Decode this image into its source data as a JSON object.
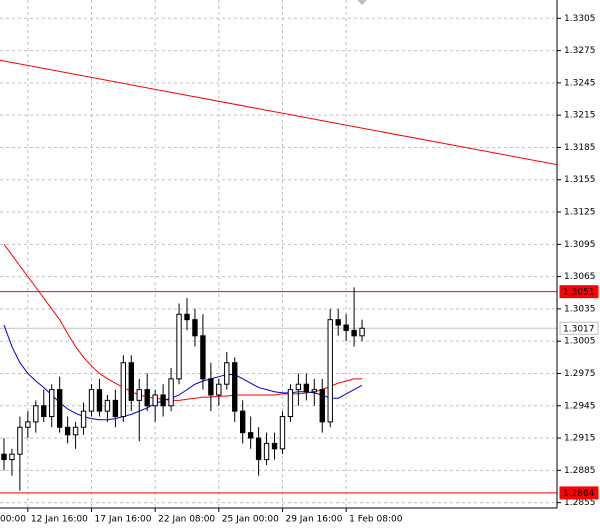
{
  "chart_data": {
    "type": "candlestick",
    "xlim": [
      0,
      70
    ],
    "ylim": [
      1.285,
      1.3322
    ],
    "yticks": [
      1.3305,
      1.3275,
      1.3245,
      1.3215,
      1.3185,
      1.3155,
      1.3125,
      1.3095,
      1.3065,
      1.3035,
      1.3005,
      1.2975,
      1.2945,
      1.2915,
      1.2885,
      1.2855
    ],
    "xticks": [
      {
        "value": -0.4,
        "label": "00:00"
      },
      {
        "value": 3.5,
        "label": "12 Jan 16:00"
      },
      {
        "value": 11.5,
        "label": "17 Jan 16:00"
      },
      {
        "value": 19.5,
        "label": "22 Jan 08:00"
      },
      {
        "value": 27.5,
        "label": "25 Jan 00:00"
      },
      {
        "value": 35.5,
        "label": "29 Jan 16:00"
      },
      {
        "value": 43.5,
        "label": "1 Feb 08:00"
      }
    ],
    "grid": true,
    "open": [
      1.29,
      1.2895,
      1.29,
      1.2925,
      1.293,
      1.2945,
      1.2935,
      1.296,
      1.2925,
      1.2918,
      1.2925,
      1.294,
      1.296,
      1.294,
      1.295,
      1.2935,
      1.2985,
      1.295,
      1.296,
      1.2945,
      1.2955,
      1.2945,
      1.297,
      1.303,
      1.3025,
      1.301,
      1.297,
      1.2955,
      1.2965,
      1.2985,
      1.294,
      1.292,
      1.2915,
      1.2895,
      1.291,
      1.2905,
      1.2935,
      1.296,
      1.2965,
      1.2958,
      1.296,
      1.293,
      1.3025,
      1.302,
      1.3015,
      1.301
    ],
    "high": [
      1.2915,
      1.2905,
      1.2935,
      1.294,
      1.295,
      1.296,
      1.2965,
      1.2972,
      1.2935,
      1.293,
      1.2948,
      1.2965,
      1.297,
      1.2955,
      1.296,
      1.2992,
      1.2992,
      1.297,
      1.2975,
      1.296,
      1.2965,
      1.298,
      1.304,
      1.3045,
      1.3035,
      1.303,
      1.2985,
      1.297,
      1.2995,
      1.299,
      1.295,
      1.2935,
      1.2925,
      1.292,
      1.292,
      1.294,
      1.2965,
      1.2975,
      1.2975,
      1.297,
      1.297,
      1.3035,
      1.3035,
      1.303,
      1.3055,
      1.3025
    ],
    "low": [
      1.2885,
      1.288,
      1.2866,
      1.2915,
      1.292,
      1.293,
      1.2925,
      1.292,
      1.291,
      1.2905,
      1.2918,
      1.2935,
      1.2935,
      1.293,
      1.2925,
      1.293,
      1.294,
      1.2912,
      1.294,
      1.293,
      1.2935,
      1.294,
      1.2965,
      1.3015,
      1.3,
      1.296,
      1.294,
      1.2945,
      1.296,
      1.293,
      1.291,
      1.2905,
      1.288,
      1.289,
      1.2895,
      1.29,
      1.293,
      1.2945,
      1.295,
      1.2945,
      1.292,
      1.2925,
      1.301,
      1.3005,
      1.3,
      1.3005
    ],
    "close": [
      1.2895,
      1.29,
      1.2925,
      1.293,
      1.2945,
      1.2935,
      1.296,
      1.2925,
      1.2918,
      1.2925,
      1.294,
      1.296,
      1.294,
      1.295,
      1.2935,
      1.2985,
      1.295,
      1.296,
      1.2945,
      1.2955,
      1.2945,
      1.297,
      1.303,
      1.3025,
      1.301,
      1.297,
      1.2955,
      1.2965,
      1.2985,
      1.294,
      1.292,
      1.2915,
      1.2895,
      1.291,
      1.2905,
      1.2935,
      1.296,
      1.2965,
      1.2958,
      1.296,
      1.293,
      1.3025,
      1.302,
      1.3015,
      1.301,
      1.3017
    ],
    "overlays": [
      {
        "color": "#ff0000",
        "values": [
          1.3095,
          1.3085,
          1.3075,
          1.3065,
          1.3055,
          1.3045,
          1.3035,
          1.3025,
          1.3012,
          1.3,
          1.299,
          1.2982,
          1.2975,
          1.297,
          1.2966,
          1.2962,
          1.2958,
          1.2955,
          1.2953,
          1.2952,
          1.2951,
          1.295,
          1.295,
          1.2951,
          1.2952,
          1.2953,
          1.2953,
          1.2954,
          1.2954,
          1.2955,
          1.2955,
          1.2955,
          1.2955,
          1.2955,
          1.2955,
          1.2956,
          1.2956,
          1.2956,
          1.2957,
          1.2958,
          1.296,
          1.2963,
          1.2966,
          1.2968,
          1.297,
          1.297
        ]
      },
      {
        "color": "#0000cc",
        "values": [
          1.302,
          1.3,
          1.2985,
          1.2975,
          1.2968,
          1.2962,
          1.2955,
          1.2948,
          1.2942,
          1.2938,
          1.2935,
          1.2933,
          1.2932,
          1.2932,
          1.2933,
          1.2935,
          1.2937,
          1.294,
          1.2943,
          1.2947,
          1.295,
          1.2952,
          1.2955,
          1.296,
          1.2965,
          1.2968,
          1.297,
          1.2972,
          1.2974,
          1.2974,
          1.297,
          1.2966,
          1.2962,
          1.296,
          1.2958,
          1.2957,
          1.2957,
          1.2958,
          1.2958,
          1.2957,
          1.2955,
          1.2952,
          1.2952,
          1.2956,
          1.296,
          1.2964
        ]
      }
    ],
    "trendline": {
      "x": [
        0,
        70
      ],
      "y": [
        1.3266,
        1.3169
      ],
      "color": "#ff0000"
    },
    "levels": [
      {
        "value": 1.3051,
        "color": "#ff0000",
        "label_fill": "#ff0000",
        "label_color": "#ffffff"
      },
      {
        "value": 1.3017,
        "color": "#c0c0c0",
        "label_fill": "#ffffff",
        "label_color": "#000000"
      },
      {
        "value": 1.2864,
        "color": "#ff0000",
        "label_fill": "#ff0000",
        "label_color": "#ffffff"
      }
    ]
  }
}
